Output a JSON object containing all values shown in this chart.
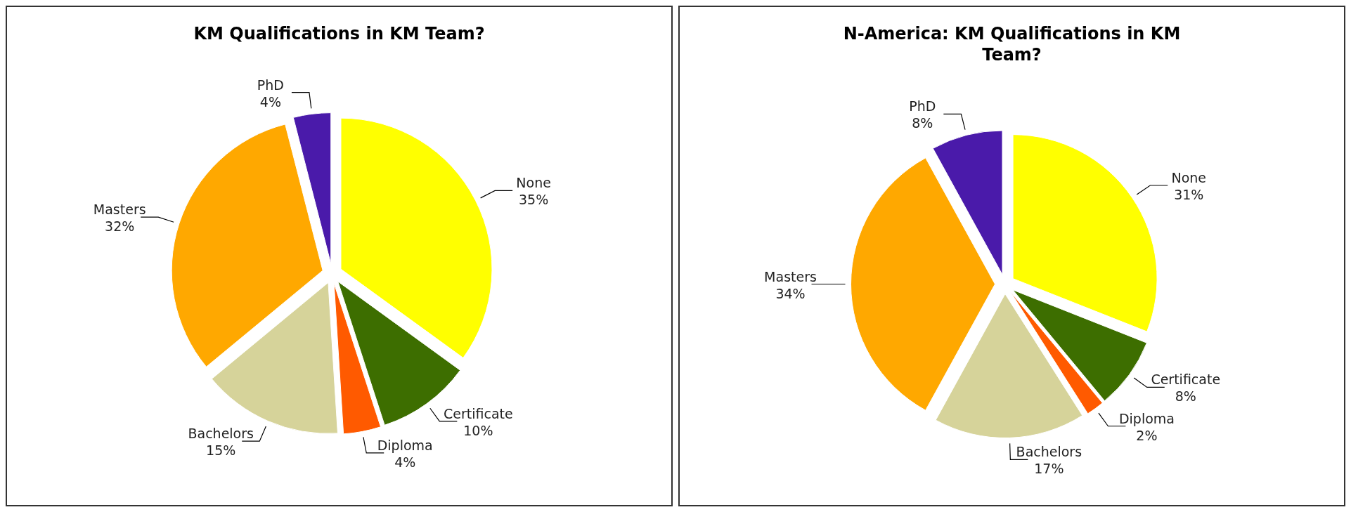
{
  "chart_data": [
    {
      "type": "pie",
      "title": "KM Qualifications in KM Team?",
      "categories": [
        "None",
        "Certificate",
        "Diploma",
        "Bachelors",
        "Masters",
        "PhD"
      ],
      "values": [
        35,
        10,
        4,
        15,
        32,
        4
      ],
      "value_labels": [
        "35%",
        "10%",
        "4%",
        "15%",
        "32%",
        "4%"
      ],
      "colors": [
        "#ffff00",
        "#3d6e00",
        "#ff5a00",
        "#d6d39a",
        "#ffa800",
        "#4a1aaa"
      ],
      "legend": false
    },
    {
      "type": "pie",
      "title": "N-America: KM Qualifications in KM Team?",
      "categories": [
        "None",
        "Certificate",
        "Diploma",
        "Bachelors",
        "Masters",
        "PhD"
      ],
      "values": [
        31,
        8,
        2,
        17,
        34,
        8
      ],
      "value_labels": [
        "31%",
        "8%",
        "2%",
        "17%",
        "34%",
        "8%"
      ],
      "colors": [
        "#ffff00",
        "#3d6e00",
        "#ff5a00",
        "#d6d39a",
        "#ffa800",
        "#4a1aaa"
      ],
      "legend": false
    }
  ]
}
